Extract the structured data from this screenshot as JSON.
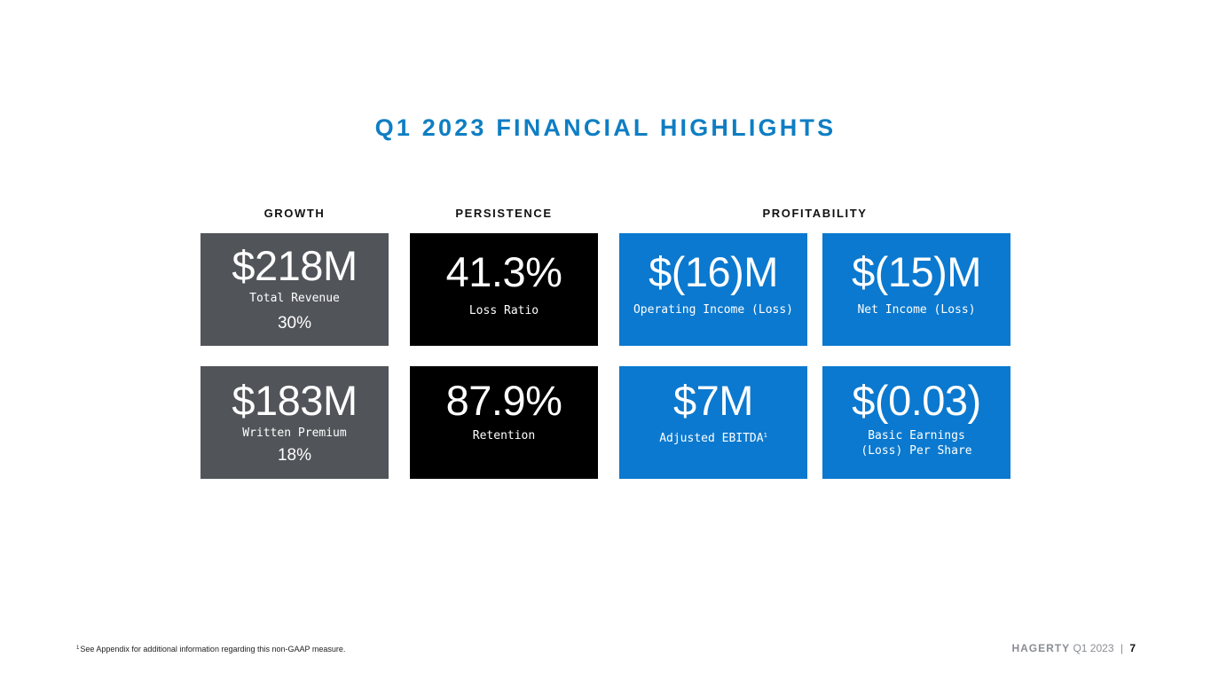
{
  "colors": {
    "title": "#0e7ec3",
    "growth_card": "#515459",
    "persistence_card": "#000000",
    "profitability_card": "#0b79cf"
  },
  "title": "Q1 2023 FINANCIAL HIGHLIGHTS",
  "sections": {
    "growth": "GROWTH",
    "persistence": "PERSISTENCE",
    "profitability": "PROFITABILITY"
  },
  "cards": {
    "total_revenue": {
      "value": "$218M",
      "label": "Total Revenue",
      "growth": "30%"
    },
    "written_premium": {
      "value": "$183M",
      "label": "Written Premium",
      "growth": "18%"
    },
    "loss_ratio": {
      "value": "41.3%",
      "label": "Loss Ratio"
    },
    "retention": {
      "value": "87.9%",
      "label": "Retention"
    },
    "operating_income": {
      "value": "$(16)M",
      "label": "Operating Income (Loss)"
    },
    "net_income": {
      "value": "$(15)M",
      "label": "Net Income (Loss)"
    },
    "adjusted_ebitda": {
      "value": "$7M",
      "label": "Adjusted EBITDA",
      "footnote_mark": "1"
    },
    "basic_eps": {
      "value": "$(0.03)",
      "label": "Basic Earnings\n(Loss) Per Share"
    }
  },
  "footer": {
    "footnote_mark": "1",
    "footnote": "See Appendix for additional information regarding this non-GAAP measure.",
    "brand": "HAGERTY",
    "period": "Q1 2023",
    "separator": "|",
    "page": "7"
  }
}
